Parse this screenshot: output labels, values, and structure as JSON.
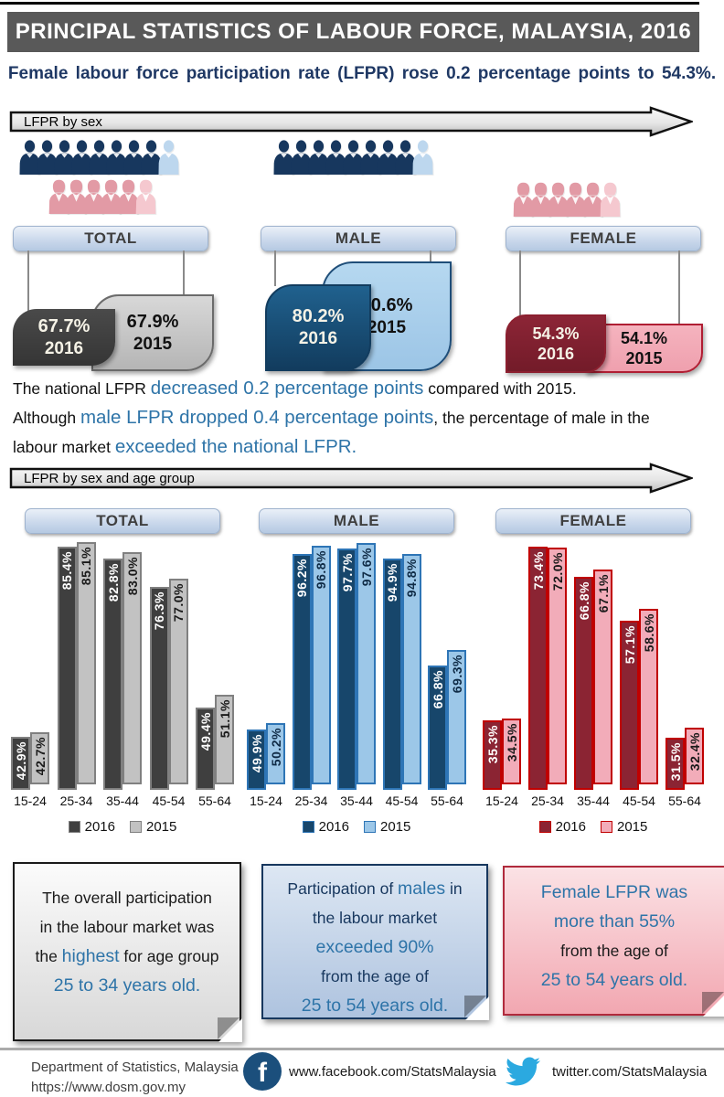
{
  "title": "PRINCIPAL STATISTICS OF LABOUR FORCE, MALAYSIA, 2016",
  "subtitle": "Female labour force participation rate (LFPR) rose 0.2 percentage points to 54.3%.",
  "banners": {
    "sex": "LFPR by sex",
    "sex_age": "LFPR by sex and age group"
  },
  "colors": {
    "accent_text": "#2E74A8",
    "navy_text": "#1F3864",
    "title_bar": "#595959",
    "male_dark": "#17375E",
    "male_light": "#BDD7EE",
    "female_dark": "#E29AA5",
    "female_light": "#F5C8CF"
  },
  "sex_section": {
    "groups": [
      {
        "id": "total",
        "label": "TOTAL",
        "icon_rows": [
          {
            "type": "male",
            "dark": 8,
            "light": 1
          },
          {
            "type": "female",
            "dark": 5,
            "light": 1
          }
        ],
        "cards": [
          {
            "value": "67.7%",
            "year": "2016"
          },
          {
            "value": "67.9%",
            "year": "2015"
          }
        ]
      },
      {
        "id": "male",
        "label": "MALE",
        "icon_rows": [
          {
            "type": "male",
            "dark": 8,
            "light": 1
          }
        ],
        "cards": [
          {
            "value": "80.2%",
            "year": "2016"
          },
          {
            "value": "80.6%",
            "year": "2015"
          }
        ]
      },
      {
        "id": "female",
        "label": "FEMALE",
        "icon_rows": [
          {
            "type": "female",
            "dark": 5,
            "light": 1
          }
        ],
        "cards": [
          {
            "value": "54.3%",
            "year": "2016"
          },
          {
            "value": "54.1%",
            "year": "2015"
          }
        ]
      }
    ]
  },
  "commentary": {
    "lines": [
      [
        {
          "t": "The national LFPR ",
          "s": "p"
        },
        {
          "t": "decreased 0.2 percentage points",
          "s": "a"
        },
        {
          "t": " compared with 2015.",
          "s": "p"
        }
      ],
      [
        {
          "t": "Although ",
          "s": "p"
        },
        {
          "t": "male LFPR dropped 0.4 percentage points",
          "s": "a"
        },
        {
          "t": ", the percentage of male in the",
          "s": "p"
        }
      ],
      [
        {
          "t": "labour market  ",
          "s": "p"
        },
        {
          "t": "exceeded the national LFPR.",
          "s": "a"
        }
      ]
    ]
  },
  "chart_data": [
    {
      "id": "total",
      "type": "bar",
      "title": "TOTAL",
      "categories": [
        "15-24",
        "25-34",
        "35-44",
        "45-54",
        "55-64"
      ],
      "series": [
        {
          "name": "2016",
          "values": [
            42.9,
            85.4,
            82.8,
            76.3,
            49.4
          ]
        },
        {
          "name": "2015",
          "values": [
            42.7,
            85.1,
            83.0,
            77.0,
            51.1
          ]
        }
      ],
      "ylim": [
        31,
        87
      ],
      "unit": "%",
      "legend_position": "bottom",
      "grid": false,
      "palette": {
        "fill2016": "#3F3F3F",
        "fill2015": "#C2C2C2",
        "border": "#808080",
        "text2016": "#FFFFFF",
        "text2015": "#1A1A1A"
      }
    },
    {
      "id": "male",
      "type": "bar",
      "title": "MALE",
      "categories": [
        "15-24",
        "25-34",
        "35-44",
        "45-54",
        "55-64"
      ],
      "series": [
        {
          "name": "2016",
          "values": [
            49.9,
            96.2,
            97.7,
            94.9,
            66.8
          ]
        },
        {
          "name": "2015",
          "values": [
            50.2,
            96.8,
            97.6,
            94.8,
            69.3
          ]
        }
      ],
      "ylim": [
        34,
        100
      ],
      "unit": "%",
      "legend_position": "bottom",
      "grid": false,
      "palette": {
        "fill2016": "#17466B",
        "fill2015": "#9CC7E8",
        "border": "#2E75B6",
        "text2016": "#FFFFFF",
        "text2015": "#0F2B46"
      }
    },
    {
      "id": "female",
      "type": "bar",
      "title": "FEMALE",
      "categories": [
        "15-24",
        "25-34",
        "35-44",
        "45-54",
        "55-64"
      ],
      "series": [
        {
          "name": "2016",
          "values": [
            35.3,
            73.4,
            66.8,
            57.1,
            31.5
          ]
        },
        {
          "name": "2015",
          "values": [
            34.5,
            72.0,
            67.1,
            58.6,
            32.4
          ]
        }
      ],
      "ylim": [
        20,
        75
      ],
      "unit": "%",
      "legend_position": "bottom",
      "grid": false,
      "palette": {
        "fill2016": "#8B2433",
        "fill2015": "#F2ACB9",
        "border": "#C00000",
        "text2016": "#FFFFFF",
        "text2015": "#1A1A1A"
      }
    }
  ],
  "notes": [
    {
      "lines": [
        [
          {
            "t": "The overall participation",
            "s": "p"
          }
        ],
        [
          {
            "t": "in the labour market was",
            "s": "p"
          }
        ],
        [
          {
            "t": "the ",
            "s": "p"
          },
          {
            "t": "highest",
            "s": "a"
          },
          {
            "t": " for age group",
            "s": "p"
          }
        ],
        [
          {
            "t": "25 to 34 years old.",
            "s": "a"
          }
        ]
      ]
    },
    {
      "lines": [
        [
          {
            "t": "Participation of ",
            "s": "p"
          },
          {
            "t": "males",
            "s": "a"
          },
          {
            "t": " in",
            "s": "p"
          }
        ],
        [
          {
            "t": "the labour market",
            "s": "p"
          }
        ],
        [
          {
            "t": "exceeded 90%",
            "s": "a"
          }
        ],
        [
          {
            "t": "from the age of",
            "s": "p"
          }
        ],
        [
          {
            "t": "25 to 54 years old.",
            "s": "a"
          }
        ]
      ]
    },
    {
      "lines": [
        [
          {
            "t": "Female LFPR was",
            "s": "a"
          }
        ],
        [
          {
            "t": "more than 55%",
            "s": "a"
          }
        ],
        [
          {
            "t": "from the age of",
            "s": "p"
          }
        ],
        [
          {
            "t": "25 to 54 years old.",
            "s": "a"
          }
        ]
      ]
    }
  ],
  "footer": {
    "org": "Department of Statistics, Malaysia",
    "url": "https://www.dosm.gov.my",
    "facebook": "www.facebook.com/StatsMalaysia",
    "twitter": "twitter.com/StatsMalaysia",
    "facebook_letter": "f"
  }
}
